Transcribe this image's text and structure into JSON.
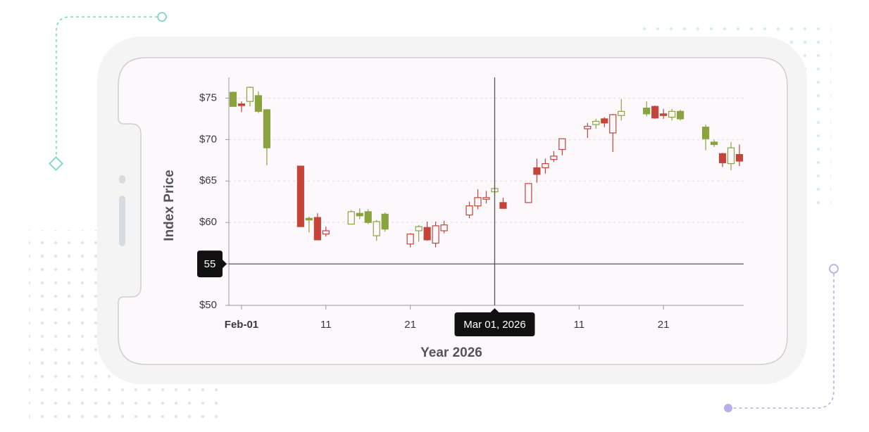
{
  "chart_data": {
    "type": "candlestick",
    "xlabel": "Year 2026",
    "ylabel": "Index Price",
    "x": [
      -1,
      0,
      1,
      2,
      3,
      7,
      8,
      9,
      10,
      13,
      14,
      15,
      16,
      17,
      20,
      21,
      22,
      23,
      24,
      27,
      28,
      29,
      30,
      31,
      34,
      35,
      36,
      37,
      38,
      41,
      42,
      43,
      44,
      45,
      48,
      49,
      50,
      51,
      52,
      55,
      56,
      57,
      58,
      59
    ],
    "open": [
      75.7,
      74.3,
      74.6,
      75.3,
      73.6,
      66.8,
      60.5,
      60.6,
      58.6,
      59.8,
      61.1,
      61.3,
      58.4,
      61.0,
      57.4,
      59.0,
      59.4,
      57.5,
      59.0,
      60.9,
      62.0,
      62.8,
      63.7,
      62.4,
      62.4,
      66.6,
      66.6,
      67.6,
      68.8,
      71.3,
      71.8,
      72.5,
      70.8,
      72.9,
      73.8,
      74.0,
      73.1,
      72.7,
      73.4,
      71.5,
      69.7,
      68.3,
      67.1,
      68.2
    ],
    "high": [
      75.8,
      74.6,
      76.4,
      75.8,
      73.7,
      66.8,
      60.7,
      61.1,
      59.5,
      61.5,
      61.7,
      61.6,
      60.3,
      61.2,
      58.7,
      59.7,
      60.1,
      60.1,
      60.2,
      62.5,
      64.0,
      63.8,
      64.5,
      63.0,
      64.7,
      67.7,
      67.7,
      68.6,
      70.1,
      72.0,
      72.5,
      72.7,
      73.1,
      74.9,
      74.6,
      74.1,
      73.7,
      73.7,
      73.6,
      71.8,
      70.0,
      68.4,
      69.7,
      69.4
    ],
    "low": [
      74.0,
      73.3,
      74.0,
      73.2,
      66.9,
      59.5,
      58.8,
      57.9,
      58.3,
      59.8,
      60.4,
      59.8,
      57.8,
      58.9,
      57.0,
      57.7,
      57.8,
      57.0,
      58.7,
      60.5,
      61.6,
      62.3,
      63.3,
      61.7,
      62.4,
      64.8,
      65.9,
      67.3,
      68.1,
      70.2,
      71.3,
      71.5,
      68.5,
      72.3,
      72.8,
      72.5,
      72.5,
      72.3,
      72.3,
      68.7,
      69.1,
      66.7,
      66.3,
      66.8
    ],
    "close": [
      74.0,
      74.1,
      76.3,
      73.4,
      69.0,
      59.5,
      60.3,
      57.9,
      59.0,
      61.3,
      60.8,
      60.0,
      60.1,
      59.2,
      58.6,
      59.5,
      57.9,
      59.6,
      59.7,
      62.0,
      63.0,
      63.0,
      64.1,
      61.7,
      64.7,
      65.8,
      67.1,
      68.0,
      70.1,
      71.6,
      72.2,
      72.0,
      73.0,
      73.4,
      73.1,
      72.6,
      72.9,
      73.4,
      72.5,
      70.1,
      69.4,
      67.2,
      69.0,
      67.4
    ],
    "colors": [
      "#8aa33f",
      "#c4443a",
      "#8aa33f",
      "#8aa33f",
      "#8aa33f",
      "#c4443a",
      "#8aa33f",
      "#c4443a",
      "#c4443a",
      "#8aa33f",
      "#8aa33f",
      "#8aa33f",
      "#8aa33f",
      "#8aa33f",
      "#c4443a",
      "#8aa33f",
      "#c4443a",
      "#c4443a",
      "#c4443a",
      "#c4443a",
      "#c4443a",
      "#c4443a",
      "#8aa33f",
      "#c4443a",
      "#c4443a",
      "#c4443a",
      "#c4443a",
      "#c4443a",
      "#c4443a",
      "#c4443a",
      "#8aa33f",
      "#c4443a",
      "#c4443a",
      "#8aa33f",
      "#8aa33f",
      "#c4443a",
      "#c4443a",
      "#8aa33f",
      "#8aa33f",
      "#8aa33f",
      "#8aa33f",
      "#c4443a",
      "#8aa33f",
      "#c4443a"
    ],
    "xlim": [
      -1.5,
      59.5
    ],
    "xticks": [
      {
        "value": 0,
        "label": "Feb-01"
      },
      {
        "value": 10,
        "label": "11"
      },
      {
        "value": 20,
        "label": "21"
      },
      {
        "value": 40,
        "label": "11"
      },
      {
        "value": 50,
        "label": "21"
      }
    ],
    "ylim": [
      50,
      77.5
    ],
    "yticks": [
      {
        "value": 50,
        "label": "$50"
      },
      {
        "value": 55,
        "label": "$55"
      },
      {
        "value": 60,
        "label": "$60"
      },
      {
        "value": 65,
        "label": "$65"
      },
      {
        "value": 70,
        "label": "$70"
      },
      {
        "value": 75,
        "label": "$75"
      }
    ],
    "grid": true,
    "crosshair": {
      "x": 30,
      "y": 55,
      "x_label": "Mar 01, 2026"
    }
  }
}
